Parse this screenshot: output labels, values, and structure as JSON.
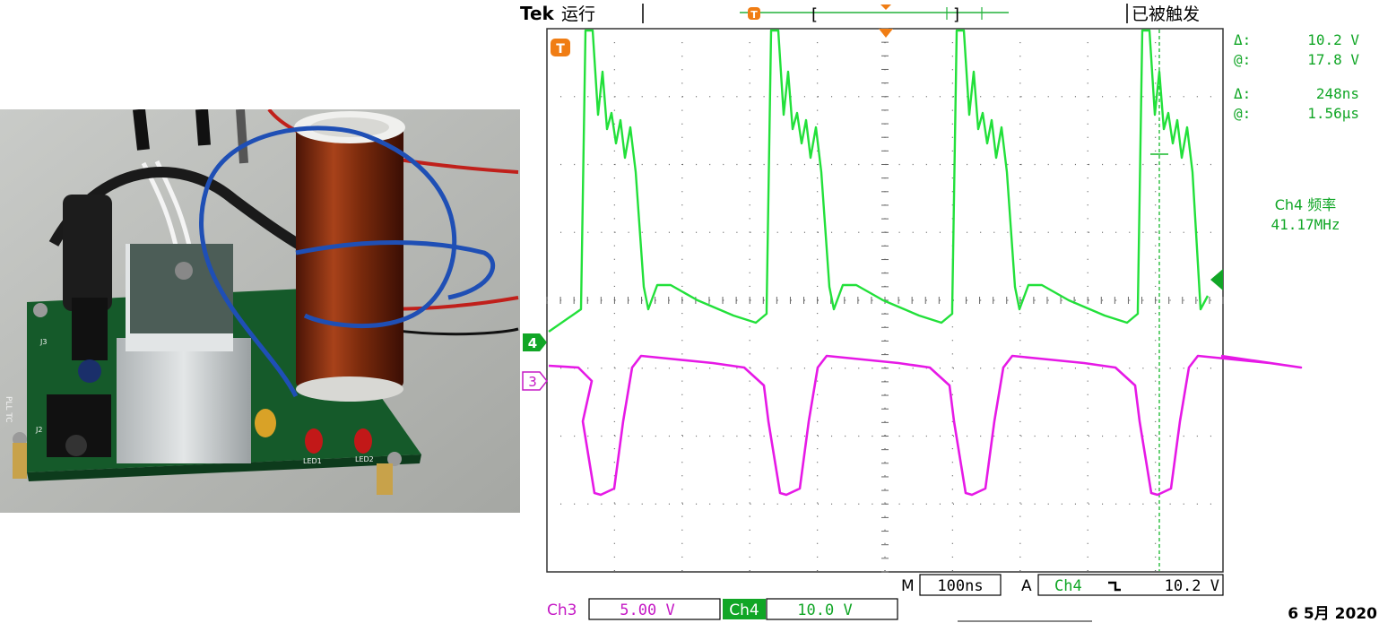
{
  "header": {
    "brand": "Tek",
    "run_state": "运行",
    "trigger_status": "已被触发"
  },
  "markers": {
    "trigger_marker": "T",
    "ch4_marker": "4",
    "ch3_marker": "3"
  },
  "cursor_readout": {
    "volt_delta_label": "Δ:",
    "volt_delta_value": "10.2 V",
    "volt_at_label": "@:",
    "volt_at_value": "17.8 V",
    "time_delta_label": "Δ:",
    "time_delta_value": "248ns",
    "time_at_label": "@:",
    "time_at_value": "1.56µs"
  },
  "measurement": {
    "label": "Ch4 频率",
    "value": "41.17MHz"
  },
  "timebase": {
    "m_label": "M",
    "m_value": "100ns",
    "a_label": "A",
    "a_channel": "Ch4",
    "a_slope": "⌐",
    "a_level": "10.2 V"
  },
  "channels": {
    "ch3_label": "Ch3",
    "ch3_scale": "5.00 V",
    "ch4_label": "Ch4",
    "ch4_scale": "10.0 V"
  },
  "footer": {
    "date": "6 5月  2020"
  },
  "colors": {
    "ch4": "#22e03a",
    "ch3": "#e619e6",
    "trigger": "#f07d14",
    "grid": "#555555",
    "ch4_label_bg": "#11a626"
  },
  "board_labels": {
    "led1": "LED1",
    "led2": "LED2",
    "pll": "PLL TC",
    "j2": "J2",
    "j3": "J3"
  }
}
